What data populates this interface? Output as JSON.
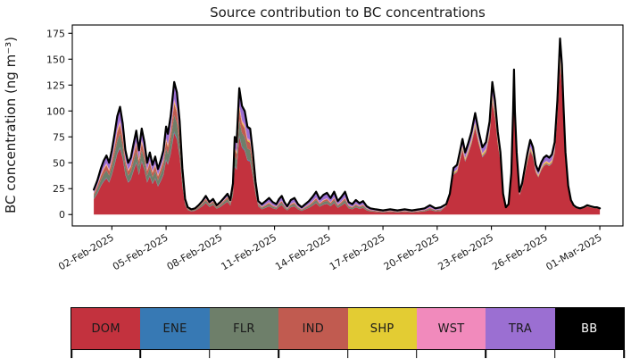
{
  "title": "Source contribution to BC concentrations",
  "axes": {
    "ylabel": "BC concentration (ng m⁻³)",
    "y_ticks": [
      0,
      25,
      50,
      75,
      100,
      125,
      150,
      175
    ],
    "ylim": [
      -11,
      183
    ],
    "xlim_days": [
      -1.19,
      29.28
    ],
    "x_ticks": [
      {
        "day": 1,
        "label": "02-Feb-2025"
      },
      {
        "day": 4,
        "label": "05-Feb-2025"
      },
      {
        "day": 7,
        "label": "08-Feb-2025"
      },
      {
        "day": 10,
        "label": "11-Feb-2025"
      },
      {
        "day": 13,
        "label": "14-Feb-2025"
      },
      {
        "day": 16,
        "label": "17-Feb-2025"
      },
      {
        "day": 19,
        "label": "20-Feb-2025"
      },
      {
        "day": 22,
        "label": "23-Feb-2025"
      },
      {
        "day": 25,
        "label": "26-Feb-2025"
      },
      {
        "day": 28,
        "label": "01-Mar-2025"
      }
    ]
  },
  "chart_data": {
    "type": "area",
    "stacked": true,
    "grid": false,
    "legend_position": "bottom-color-strip",
    "x_reference_date": "01-Feb-2025",
    "x_unit": "days since 01-Feb-2025 00:00",
    "y_unit": "ng m⁻³",
    "x_days": [
      0.0,
      0.2,
      0.4,
      0.55,
      0.7,
      0.85,
      1.0,
      1.15,
      1.3,
      1.45,
      1.6,
      1.75,
      1.9,
      2.05,
      2.2,
      2.35,
      2.5,
      2.65,
      2.8,
      2.95,
      3.1,
      3.25,
      3.4,
      3.55,
      3.7,
      3.85,
      4.0,
      4.1,
      4.25,
      4.45,
      4.6,
      4.75,
      4.9,
      5.05,
      5.2,
      5.4,
      5.6,
      5.8,
      6.0,
      6.2,
      6.4,
      6.6,
      6.8,
      7.0,
      7.2,
      7.4,
      7.55,
      7.7,
      7.8,
      7.9,
      8.05,
      8.2,
      8.35,
      8.5,
      8.65,
      8.8,
      8.95,
      9.1,
      9.3,
      9.5,
      9.7,
      9.9,
      10.1,
      10.25,
      10.4,
      10.55,
      10.7,
      10.9,
      11.1,
      11.3,
      11.5,
      11.7,
      11.9,
      12.1,
      12.3,
      12.5,
      12.7,
      12.9,
      13.1,
      13.3,
      13.5,
      13.7,
      13.9,
      14.1,
      14.3,
      14.5,
      14.7,
      14.9,
      15.1,
      15.3,
      15.6,
      16.0,
      16.4,
      16.8,
      17.2,
      17.6,
      18.0,
      18.3,
      18.6,
      18.9,
      19.2,
      19.5,
      19.7,
      19.9,
      20.1,
      20.25,
      20.4,
      20.55,
      20.7,
      20.9,
      21.1,
      21.3,
      21.5,
      21.7,
      21.9,
      22.05,
      22.2,
      22.35,
      22.5,
      22.65,
      22.8,
      22.95,
      23.1,
      23.2,
      23.25,
      23.3,
      23.4,
      23.55,
      23.7,
      23.85,
      24.0,
      24.15,
      24.3,
      24.45,
      24.6,
      24.75,
      24.9,
      25.05,
      25.2,
      25.35,
      25.5,
      25.65,
      25.8,
      25.9,
      26.0,
      26.1,
      26.25,
      26.4,
      26.55,
      26.7,
      26.9,
      27.1,
      27.3,
      27.5,
      27.7,
      27.85,
      28.0
    ],
    "total_bc_ng_m3": [
      24,
      33,
      45,
      52,
      57,
      50,
      62,
      78,
      95,
      104,
      88,
      62,
      50,
      55,
      68,
      81,
      62,
      83,
      70,
      50,
      60,
      48,
      56,
      44,
      52,
      62,
      85,
      78,
      95,
      128,
      118,
      90,
      45,
      15,
      7,
      5,
      6,
      9,
      13,
      18,
      12,
      15,
      9,
      12,
      16,
      20,
      14,
      30,
      75,
      70,
      122,
      105,
      100,
      85,
      83,
      60,
      32,
      13,
      10,
      13,
      16,
      12,
      10,
      15,
      18,
      12,
      8,
      14,
      16,
      10,
      7,
      10,
      13,
      17,
      22,
      15,
      19,
      21,
      16,
      22,
      13,
      17,
      22,
      12,
      10,
      14,
      11,
      13,
      8,
      6,
      5,
      4,
      5,
      4,
      5,
      4,
      5,
      6,
      9,
      6,
      7,
      10,
      20,
      45,
      48,
      60,
      73,
      60,
      68,
      80,
      98,
      80,
      65,
      70,
      90,
      128,
      110,
      80,
      60,
      20,
      7,
      10,
      40,
      100,
      140,
      100,
      60,
      22,
      30,
      45,
      60,
      72,
      65,
      48,
      42,
      50,
      55,
      57,
      55,
      58,
      70,
      110,
      170,
      145,
      100,
      60,
      28,
      14,
      9,
      7,
      6,
      7,
      9,
      8,
      7,
      7,
      6
    ],
    "series": [
      {
        "name": "DOM",
        "color": "#c3323e",
        "text_color": "#1a1a1a"
      },
      {
        "name": "ENE",
        "color": "#3779b4",
        "text_color": "#1a1a1a"
      },
      {
        "name": "FLR",
        "color": "#6e7f6a",
        "text_color": "#1a1a1a"
      },
      {
        "name": "IND",
        "color": "#c15b50",
        "text_color": "#1a1a1a"
      },
      {
        "name": "SHP",
        "color": "#e3cc33",
        "text_color": "#1a1a1a"
      },
      {
        "name": "WST",
        "color": "#f18abc",
        "text_color": "#1a1a1a"
      },
      {
        "name": "TRA",
        "color": "#9b6fd2",
        "text_color": "#1a1a1a"
      },
      {
        "name": "BB",
        "color": "#000000",
        "text_color": "#ffffff"
      }
    ],
    "composition_eras": [
      {
        "start_day": 0.0,
        "end_day": 9.3,
        "fractions": {
          "DOM": 0.615,
          "ENE": 0.01,
          "FLR": 0.125,
          "IND": 0.085,
          "SHP": 0.015,
          "WST": 0.02,
          "TRA": 0.11,
          "BB": 0.02
        }
      },
      {
        "start_day": 9.3,
        "end_day": 19.5,
        "fractions": {
          "DOM": 0.5,
          "ENE": 0.01,
          "FLR": 0.12,
          "IND": 0.08,
          "SHP": 0.015,
          "WST": 0.03,
          "TRA": 0.19,
          "BB": 0.055
        }
      },
      {
        "start_day": 19.5,
        "end_day": 28.01,
        "fractions": {
          "DOM": 0.85,
          "ENE": 0.005,
          "FLR": 0.01,
          "IND": 0.012,
          "SHP": 0.02,
          "WST": 0.015,
          "TRA": 0.068,
          "BB": 0.02
        }
      }
    ],
    "series_definition": "series value at x = fraction(era containing x) × total_bc_ng_m3",
    "total_outline_color": "#000000"
  },
  "legend": {
    "style": "color-strip",
    "tick_marks": "segment-boundaries"
  }
}
